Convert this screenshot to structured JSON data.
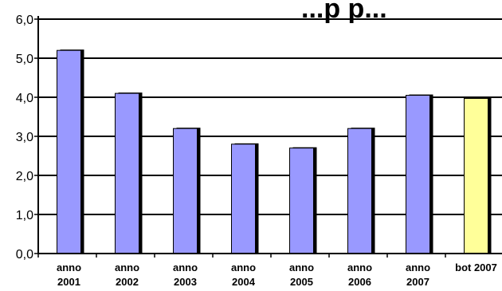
{
  "chart_data": {
    "type": "bar",
    "title": "...p p...",
    "categories": [
      [
        "anno",
        "2001"
      ],
      [
        "anno",
        "2002"
      ],
      [
        "anno",
        "2003"
      ],
      [
        "anno",
        "2004"
      ],
      [
        "anno",
        "2005"
      ],
      [
        "anno",
        "2006"
      ],
      [
        "anno",
        "2007"
      ],
      [
        "bot 2007"
      ]
    ],
    "values": [
      5.2,
      4.1,
      3.2,
      2.8,
      2.7,
      3.2,
      4.05,
      3.97
    ],
    "bar_colors": [
      "#9999ff",
      "#9999ff",
      "#9999ff",
      "#9999ff",
      "#9999ff",
      "#9999ff",
      "#9999ff",
      "#ffff99"
    ],
    "yticks": [
      "0,0",
      "1,0",
      "2,0",
      "3,0",
      "4,0",
      "5,0",
      "6,0"
    ],
    "ylim": [
      0,
      6
    ],
    "xlabel": "",
    "ylabel": "",
    "grid": true,
    "legend": "none"
  }
}
